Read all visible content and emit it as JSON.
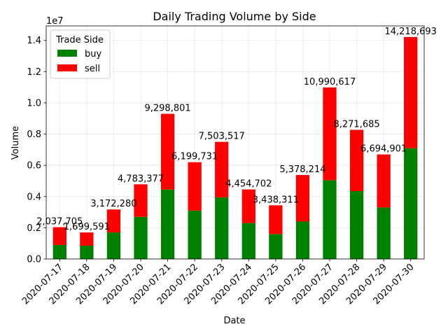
{
  "chart_data": {
    "type": "bar",
    "stacked": true,
    "title": "Daily Trading Volume by Side",
    "xlabel": "Date",
    "ylabel": "Volume",
    "y_offset_label": "1e7",
    "categories": [
      "2020-07-17",
      "2020-07-18",
      "2020-07-19",
      "2020-07-20",
      "2020-07-21",
      "2020-07-22",
      "2020-07-23",
      "2020-07-24",
      "2020-07-25",
      "2020-07-26",
      "2020-07-27",
      "2020-07-28",
      "2020-07-29",
      "2020-07-30"
    ],
    "series": [
      {
        "name": "buy",
        "color": "#008000",
        "values": [
          900000,
          850000,
          1700000,
          2700000,
          4450000,
          3100000,
          3950000,
          2300000,
          1600000,
          2400000,
          5050000,
          4350000,
          3300000,
          7100000
        ]
      },
      {
        "name": "sell",
        "color": "#ff0000",
        "values": [
          1137705,
          849591,
          1472280,
          2083377,
          4848801,
          3099731,
          3553517,
          2154702,
          1838311,
          2978214,
          5940617,
          3921685,
          3394901,
          7118693
        ]
      }
    ],
    "totals_labels": [
      "2,037,705",
      "1,699,591",
      "3,172,280",
      "4,783,377",
      "9,298,801",
      "6,199,731",
      "7,503,517",
      "4,454,702",
      "3,438,311",
      "5,378,214",
      "10,990,617",
      "8,271,685",
      "6,694,901",
      "14,218,693"
    ],
    "ylim": [
      0,
      14929627
    ],
    "yticks": [
      0,
      2000000,
      4000000,
      6000000,
      8000000,
      10000000,
      12000000,
      14000000
    ],
    "ytick_labels": [
      "0.0",
      "0.2",
      "0.4",
      "0.6",
      "0.8",
      "1.0",
      "1.2",
      "1.4"
    ],
    "grid": true,
    "legend": {
      "title": "Trade Side",
      "placement": "top-left"
    }
  }
}
